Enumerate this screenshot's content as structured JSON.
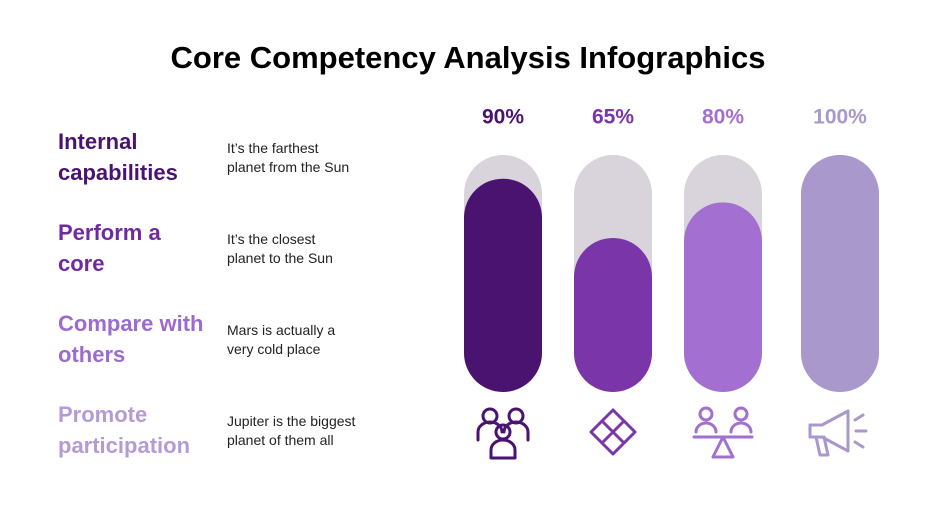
{
  "items": [
    {
      "heading": "Internal capabilities",
      "text": "It’s the farthest planet from the Sun",
      "color": "#4a1370"
    },
    {
      "heading": "Perform a core",
      "text": "It’s the closest planet to the Sun",
      "color": "#6f2b9e"
    },
    {
      "heading": "Compare with others",
      "text": "Mars is actually a very cold place",
      "color": "#9b6bce"
    },
    {
      "heading": "Promote participation",
      "text": "Jupiter is the biggest planet of them all",
      "color": "#b59bd3"
    }
  ],
  "chart_data": {
    "type": "bar",
    "title": "Core Competency Analysis Infographics",
    "categories": [
      null,
      null,
      null,
      null
    ],
    "values": [
      90,
      65,
      80,
      100
    ],
    "value_labels": [
      "90%",
      "65%",
      "80%",
      "100%"
    ],
    "colors": [
      "#4a1370",
      "#7a35a8",
      "#a36fd0",
      "#a898cb"
    ],
    "track_color": "#d9d3dc",
    "ylim": [
      0,
      100
    ]
  }
}
